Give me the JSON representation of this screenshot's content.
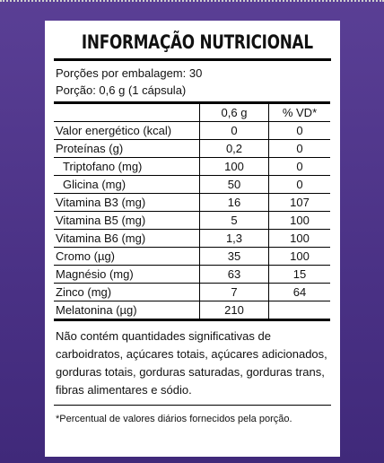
{
  "title": "INFORMAÇÃO NUTRICIONAL",
  "servings_per_package": "Porções por embalagem: 30",
  "serving_size": "Porção: 0,6 g (1 cápsula)",
  "table": {
    "col_amount": "0,6 g",
    "col_dv": "% VD*",
    "rows": [
      {
        "label": "Valor energético (kcal)",
        "amount": "0",
        "dv": "0"
      },
      {
        "label": "Proteínas (g)",
        "amount": "0,2",
        "dv": "0"
      },
      {
        "label": "Triptofano (mg)",
        "amount": "100",
        "dv": "0"
      },
      {
        "label": "Glicina (mg)",
        "amount": "50",
        "dv": "0"
      },
      {
        "label": "Vitamina B3 (mg)",
        "amount": "16",
        "dv": "107"
      },
      {
        "label": "Vitamina B5 (mg)",
        "amount": "5",
        "dv": "100"
      },
      {
        "label": "Vitamina B6 (mg)",
        "amount": "1,3",
        "dv": "100"
      },
      {
        "label": "Cromo (µg)",
        "amount": "35",
        "dv": "100"
      },
      {
        "label": "Magnésio (mg)",
        "amount": "63",
        "dv": "15"
      },
      {
        "label": "Zinco (mg)",
        "amount": "7",
        "dv": "64"
      },
      {
        "label": "Melatonina (µg)",
        "amount": "210",
        "dv": ""
      }
    ]
  },
  "note": "Não contém quantidades significativas de carboidratos, açúcares totais, açúcares adicionados, gorduras totais, gorduras saturadas, gorduras trans, fibras alimentares e sódio.",
  "footnote": "*Percentual de valores diários fornecidos pela porção."
}
